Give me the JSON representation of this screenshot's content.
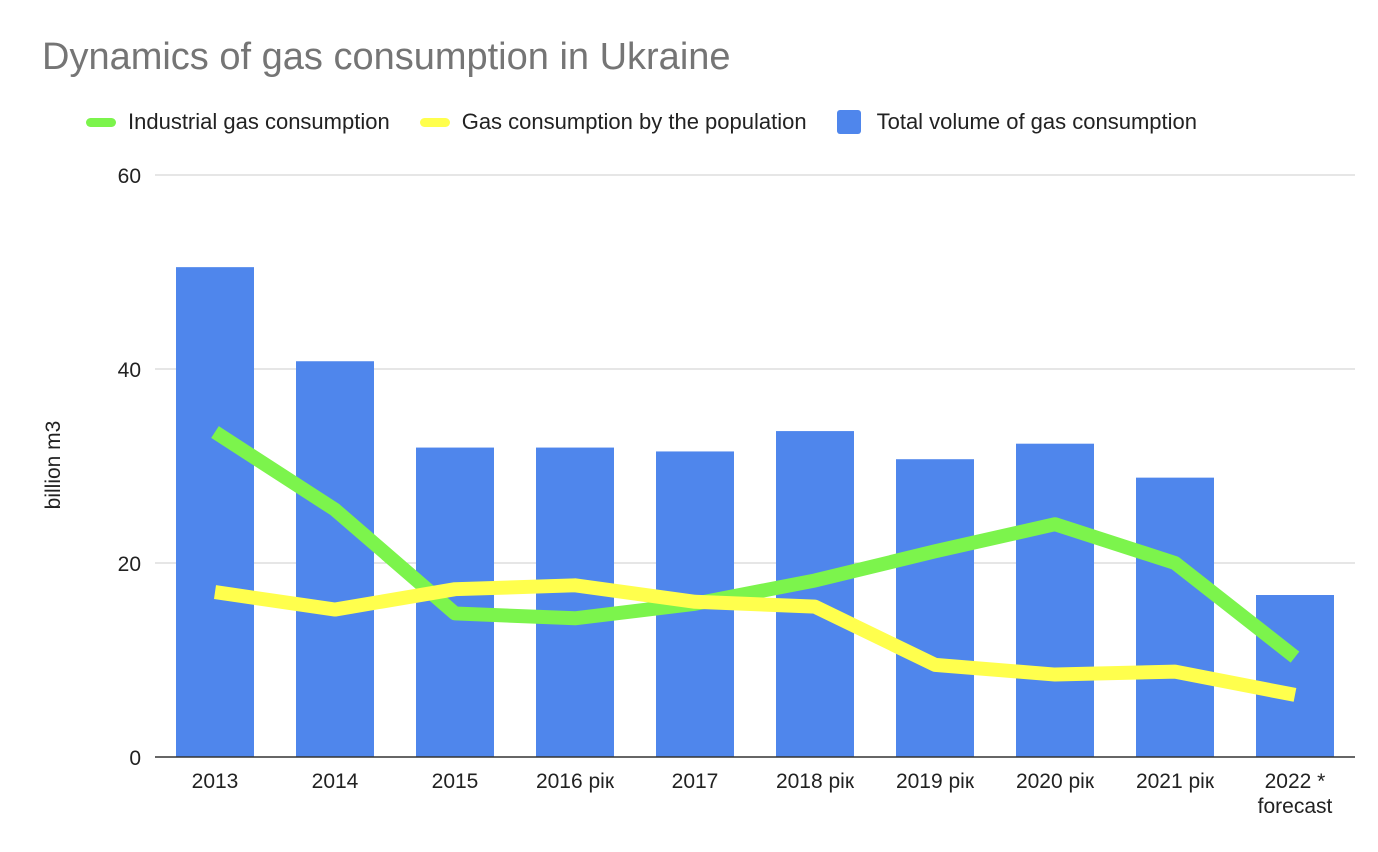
{
  "chart_data": {
    "type": "bar",
    "title": "Dynamics of gas consumption in Ukraine",
    "xlabel": "",
    "ylabel": "billion m3",
    "ylim": [
      0,
      60
    ],
    "yticks": [
      0,
      20,
      40,
      60
    ],
    "grid": true,
    "legend_position": "top",
    "categories": [
      "2013",
      "2014",
      "2015",
      "2016 рік",
      "2017",
      "2018 рік",
      "2019 рік",
      "2020 рік",
      "2021 рік",
      "2022 * forecast"
    ],
    "series": [
      {
        "name": "Industrial gas consumption",
        "type": "line",
        "color": "#7CF44C",
        "values": [
          33.5,
          25.5,
          14.8,
          14.3,
          15.8,
          18.2,
          21.2,
          24.0,
          20.0,
          10.3
        ]
      },
      {
        "name": "Gas consumption by the population",
        "type": "line",
        "color": "#FFFF4D",
        "values": [
          17.0,
          15.2,
          17.3,
          17.7,
          16.0,
          15.5,
          9.5,
          8.5,
          8.8,
          6.4
        ]
      },
      {
        "name": "Total volume of gas consumption",
        "type": "bar",
        "color": "#4F86EC",
        "values": [
          50.5,
          40.8,
          31.9,
          31.9,
          31.5,
          33.6,
          30.7,
          32.3,
          28.8,
          16.7
        ]
      }
    ]
  }
}
